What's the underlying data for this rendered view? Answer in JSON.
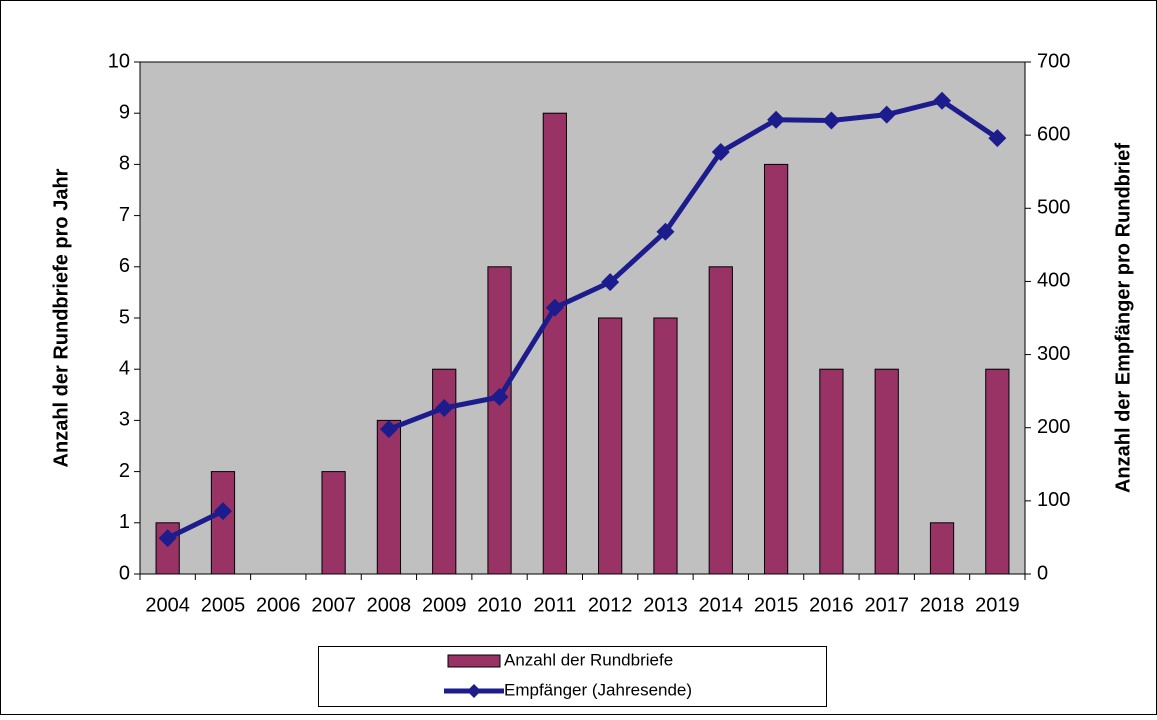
{
  "chart_data": {
    "type": "bar",
    "categories": [
      "2004",
      "2005",
      "2006",
      "2007",
      "2008",
      "2009",
      "2010",
      "2011",
      "2012",
      "2013",
      "2014",
      "2015",
      "2016",
      "2017",
      "2018",
      "2019"
    ],
    "series": [
      {
        "name": "Anzahl der Rundbriefe",
        "type": "bar",
        "color": "#993366",
        "values": [
          1,
          2,
          null,
          2,
          3,
          4,
          6,
          9,
          5,
          5,
          6,
          8,
          4,
          4,
          1,
          4
        ]
      },
      {
        "name": "Empfänger (Jahresende)",
        "type": "line",
        "axis": "y2",
        "color": "#1c1c8c",
        "values": [
          49,
          86,
          null,
          null,
          198,
          227,
          242,
          364,
          399,
          468,
          577,
          621,
          620,
          628,
          647,
          596
        ]
      }
    ],
    "ylabel": "Anzahl der Rundbriefe pro Jahr",
    "y2label": "Anzahl der Empfänger pro Rundbrief",
    "ylim": [
      0,
      10
    ],
    "yticks": [
      0,
      1,
      2,
      3,
      4,
      5,
      6,
      7,
      8,
      9,
      10
    ],
    "y2lim": [
      0,
      700
    ],
    "y2ticks": [
      0,
      100,
      200,
      300,
      400,
      500,
      600,
      700
    ],
    "plot_background": "#c0c0c0"
  }
}
